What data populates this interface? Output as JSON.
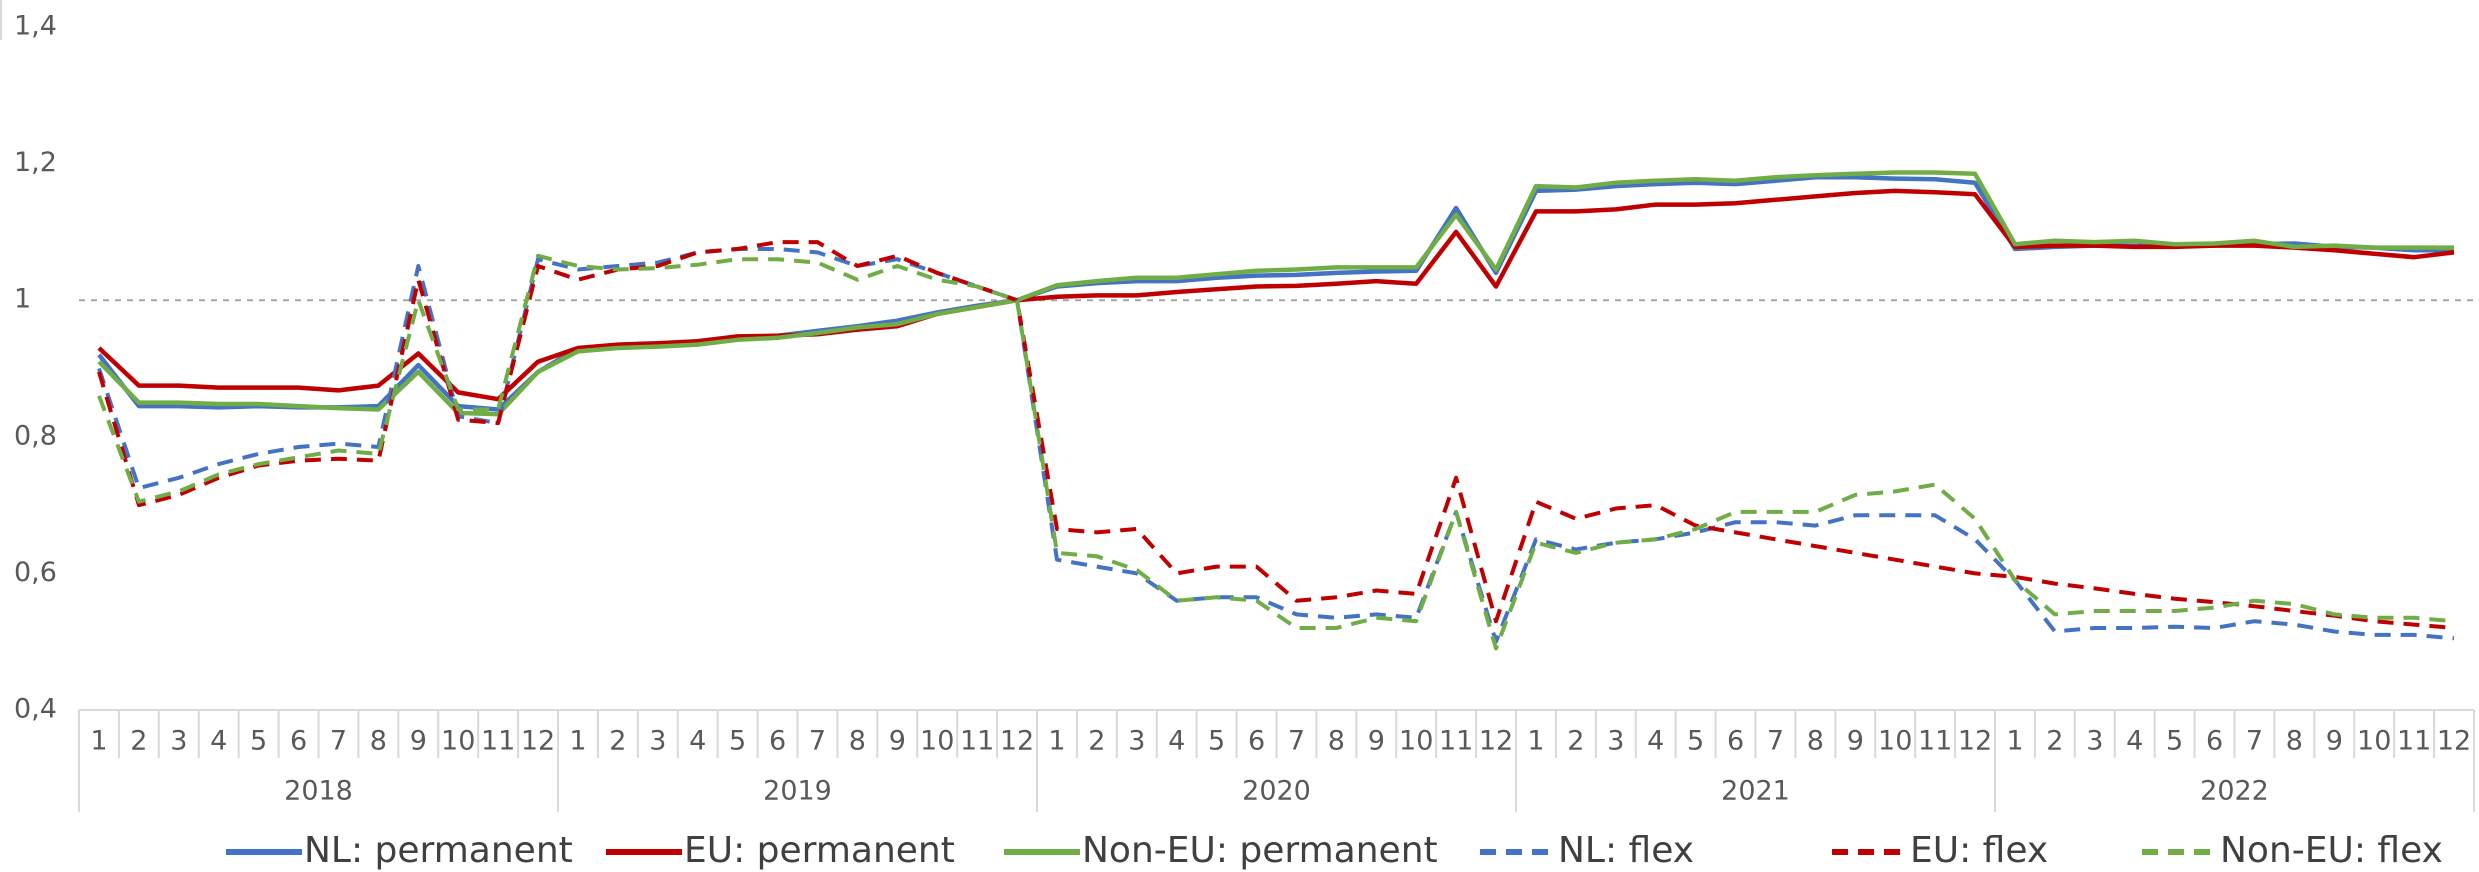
{
  "chart_data": {
    "type": "line",
    "categories": [
      "1",
      "2",
      "3",
      "4",
      "5",
      "6",
      "7",
      "8",
      "9",
      "10",
      "11",
      "12",
      "1",
      "2",
      "3",
      "4",
      "5",
      "6",
      "7",
      "8",
      "9",
      "10",
      "11",
      "12",
      "1",
      "2",
      "3",
      "4",
      "5",
      "6",
      "7",
      "8",
      "9",
      "10",
      "11",
      "12",
      "1",
      "2",
      "3",
      "4",
      "5",
      "6",
      "7",
      "8",
      "9",
      "10",
      "11",
      "12",
      "1",
      "2",
      "3",
      "4",
      "5",
      "6",
      "7",
      "8",
      "9",
      "10",
      "11",
      "12"
    ],
    "groups": [
      "2018",
      "2019",
      "2020",
      "2021",
      "2022"
    ],
    "ylim": [
      0.4,
      1.4
    ],
    "yticks": [
      {
        "value": 0.4,
        "label": "0,4"
      },
      {
        "value": 0.6,
        "label": "0,6"
      },
      {
        "value": 0.8,
        "label": "0,8"
      },
      {
        "value": 1,
        "label": "1"
      },
      {
        "value": 1.2,
        "label": "1,2"
      },
      {
        "value": 1.4,
        "label": "1,4"
      }
    ],
    "reference_line": 1,
    "legend": "bottom",
    "series": [
      {
        "name": "NL: permanent",
        "color": "#4472c4",
        "dashed": false,
        "values": [
          0.92,
          0.845,
          0.845,
          0.843,
          0.845,
          0.843,
          0.843,
          0.845,
          0.905,
          0.845,
          0.84,
          0.895,
          0.93,
          0.932,
          0.935,
          0.94,
          0.945,
          0.948,
          0.955,
          0.962,
          0.97,
          0.982,
          0.992,
          1.0,
          1.02,
          1.025,
          1.028,
          1.028,
          1.033,
          1.036,
          1.037,
          1.04,
          1.042,
          1.043,
          1.135,
          1.04,
          1.16,
          1.162,
          1.167,
          1.17,
          1.172,
          1.17,
          1.175,
          1.18,
          1.18,
          1.178,
          1.177,
          1.172,
          1.075,
          1.078,
          1.08,
          1.08,
          1.08,
          1.08,
          1.082,
          1.083,
          1.078,
          1.077,
          1.073,
          1.073
        ]
      },
      {
        "name": "EU: permanent",
        "color": "#c00000",
        "dashed": false,
        "values": [
          0.93,
          0.875,
          0.875,
          0.872,
          0.872,
          0.872,
          0.868,
          0.875,
          0.922,
          0.865,
          0.855,
          0.91,
          0.93,
          0.935,
          0.937,
          0.94,
          0.947,
          0.948,
          0.95,
          0.957,
          0.962,
          0.98,
          0.99,
          1.0,
          1.005,
          1.007,
          1.007,
          1.012,
          1.016,
          1.02,
          1.021,
          1.024,
          1.028,
          1.024,
          1.1,
          1.02,
          1.13,
          1.13,
          1.133,
          1.14,
          1.14,
          1.142,
          1.147,
          1.152,
          1.157,
          1.16,
          1.158,
          1.155,
          1.078,
          1.08,
          1.08,
          1.078,
          1.078,
          1.08,
          1.08,
          1.077,
          1.073,
          1.068,
          1.063,
          1.07
        ]
      },
      {
        "name": "Non-EU: permanent",
        "color": "#70ad47",
        "dashed": false,
        "values": [
          0.91,
          0.85,
          0.85,
          0.848,
          0.848,
          0.845,
          0.842,
          0.84,
          0.895,
          0.835,
          0.833,
          0.895,
          0.925,
          0.93,
          0.932,
          0.935,
          0.942,
          0.945,
          0.952,
          0.96,
          0.965,
          0.98,
          0.99,
          1.0,
          1.022,
          1.028,
          1.033,
          1.033,
          1.038,
          1.043,
          1.045,
          1.048,
          1.048,
          1.048,
          1.125,
          1.045,
          1.167,
          1.165,
          1.172,
          1.175,
          1.177,
          1.175,
          1.18,
          1.183,
          1.185,
          1.187,
          1.187,
          1.185,
          1.082,
          1.087,
          1.085,
          1.087,
          1.082,
          1.083,
          1.087,
          1.078,
          1.08,
          1.077,
          1.077,
          1.077
        ]
      },
      {
        "name": "NL: flex",
        "color": "#4472c4",
        "dashed": true,
        "values": [
          0.9,
          0.725,
          0.74,
          0.76,
          0.775,
          0.785,
          0.79,
          0.785,
          1.05,
          0.83,
          0.82,
          1.06,
          1.045,
          1.05,
          1.055,
          1.07,
          1.075,
          1.075,
          1.07,
          1.05,
          1.06,
          1.04,
          1.02,
          1.0,
          0.62,
          0.61,
          0.6,
          0.56,
          0.565,
          0.565,
          0.54,
          0.535,
          0.54,
          0.535,
          0.69,
          0.5,
          0.65,
          0.635,
          0.645,
          0.65,
          0.66,
          0.675,
          0.675,
          0.67,
          0.685,
          0.685,
          0.685,
          0.65,
          0.59,
          0.515,
          0.52,
          0.52,
          0.522,
          0.52,
          0.53,
          0.525,
          0.515,
          0.51,
          0.51,
          0.505
        ]
      },
      {
        "name": "EU: flex",
        "color": "#c00000",
        "dashed": true,
        "values": [
          0.895,
          0.7,
          0.715,
          0.74,
          0.758,
          0.765,
          0.768,
          0.765,
          1.03,
          0.825,
          0.82,
          1.05,
          1.03,
          1.045,
          1.05,
          1.07,
          1.075,
          1.085,
          1.085,
          1.05,
          1.065,
          1.04,
          1.02,
          1.0,
          0.665,
          0.66,
          0.665,
          0.6,
          0.61,
          0.61,
          0.56,
          0.565,
          0.575,
          0.57,
          0.74,
          0.53,
          0.705,
          0.68,
          0.695,
          0.7,
          0.67,
          0.66,
          0.65,
          0.64,
          0.63,
          0.62,
          0.61,
          0.6,
          0.595,
          0.585,
          0.578,
          0.57,
          0.563,
          0.558,
          0.552,
          0.545,
          0.538,
          0.53,
          0.525,
          0.52
        ]
      },
      {
        "name": "Non-EU: flex",
        "color": "#70ad47",
        "dashed": true,
        "values": [
          0.86,
          0.705,
          0.72,
          0.745,
          0.76,
          0.77,
          0.78,
          0.775,
          1.0,
          0.84,
          0.84,
          1.065,
          1.05,
          1.045,
          1.047,
          1.052,
          1.06,
          1.06,
          1.055,
          1.03,
          1.05,
          1.03,
          1.02,
          1.0,
          0.63,
          0.625,
          0.605,
          0.56,
          0.565,
          0.56,
          0.52,
          0.52,
          0.535,
          0.53,
          0.69,
          0.49,
          0.645,
          0.63,
          0.645,
          0.65,
          0.665,
          0.69,
          0.69,
          0.69,
          0.715,
          0.72,
          0.73,
          0.68,
          0.59,
          0.54,
          0.545,
          0.545,
          0.545,
          0.55,
          0.56,
          0.555,
          0.54,
          0.535,
          0.535,
          0.53
        ]
      }
    ]
  }
}
